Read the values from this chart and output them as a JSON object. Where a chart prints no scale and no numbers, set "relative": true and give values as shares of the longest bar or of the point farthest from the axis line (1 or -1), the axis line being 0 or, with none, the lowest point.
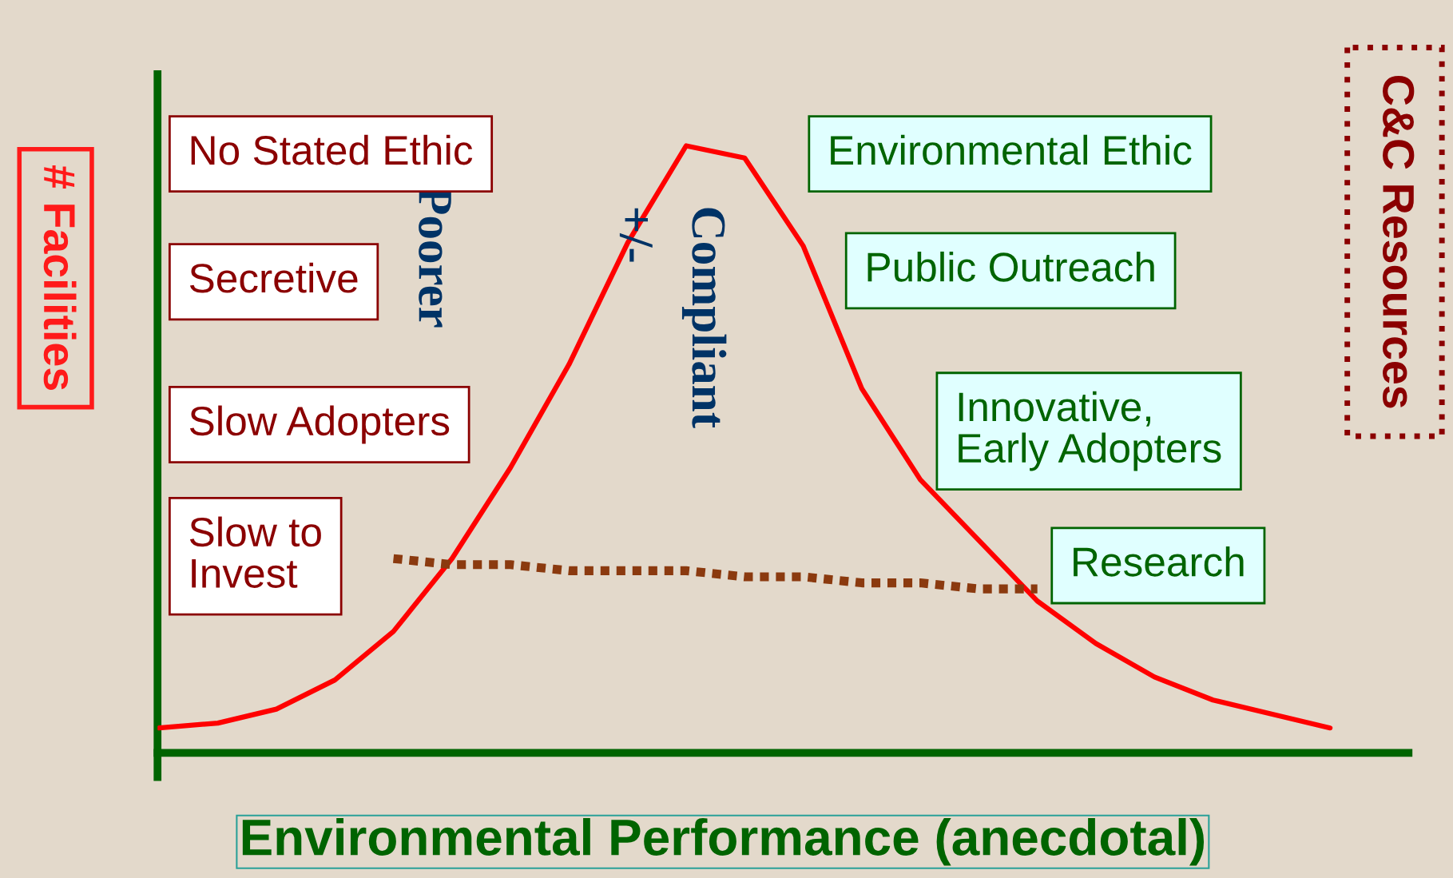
{
  "chart_data": {
    "type": "line",
    "relative": true,
    "grid": false,
    "legend": false,
    "xlabel": "Environmental Performance (anecdotal)",
    "ylabel": "# Facilities",
    "categories": [
      null,
      null,
      null,
      null,
      null,
      null,
      null,
      null,
      null,
      null,
      null,
      null,
      null,
      null,
      null,
      null,
      null,
      null,
      null,
      null,
      null
    ],
    "series": [
      {
        "color": "#ff0000",
        "line_style": "solid",
        "values": [
          0.041,
          0.049,
          0.072,
          0.12,
          0.2,
          0.32,
          0.47,
          0.64,
          0.84,
          1,
          0.98,
          0.835,
          0.6,
          0.45,
          0.35,
          0.25,
          0.18,
          0.125,
          0.087,
          0.064,
          0.041
        ]
      },
      {
        "color": "#8b3a0f",
        "line_style": "dotted",
        "values": [
          null,
          null,
          null,
          null,
          0.32,
          0.31,
          0.31,
          0.3,
          0.3,
          0.3,
          0.29,
          0.29,
          0.28,
          0.28,
          0.27,
          0.27,
          null,
          null,
          null,
          null,
          null
        ]
      }
    ],
    "annotations": [
      "No Stated Ethic",
      "Secretive",
      "Slow Adopters",
      "Slow to\nInvest",
      "Environmental Ethic",
      "Public Outreach",
      "Innovative,\nEarly Adopters",
      "Research",
      "Poorer",
      "+/-",
      "Compliant",
      "C&C Resources"
    ]
  }
}
